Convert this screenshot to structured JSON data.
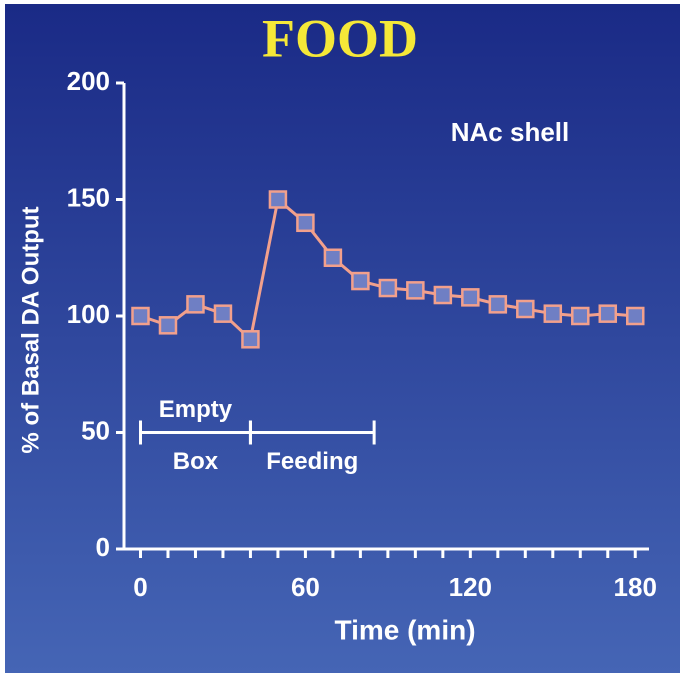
{
  "chart_data": {
    "type": "line",
    "title": "FOOD",
    "annotation": "NAc shell",
    "x_label": "Time (min)",
    "y_label": "% of Basal DA Output",
    "x": [
      0,
      10,
      20,
      30,
      40,
      50,
      60,
      70,
      80,
      90,
      100,
      110,
      120,
      130,
      140,
      150,
      160,
      170,
      180
    ],
    "series": [
      {
        "name": null,
        "color": "#f2a08c",
        "marker_fill": "#6f7fc4",
        "values": [
          100,
          96,
          105,
          101,
          90,
          150,
          140,
          125,
          115,
          112,
          111,
          109,
          108,
          105,
          103,
          101,
          100,
          101,
          100
        ]
      }
    ],
    "xlim": [
      -6,
      185
    ],
    "xticks": [
      0,
      60,
      120,
      180
    ],
    "xminor_ticks": [
      10,
      20,
      30,
      40,
      50,
      70,
      80,
      90,
      100,
      110,
      130,
      140,
      150,
      160,
      170
    ],
    "ylim": [
      0,
      200
    ],
    "yticks": [
      0,
      50,
      100,
      150,
      200
    ],
    "periods": [
      {
        "labels": [
          "Empty",
          "Box"
        ],
        "start": 0,
        "end": 40,
        "y": 50
      },
      {
        "labels": [
          "Feeding"
        ],
        "start": 40,
        "end": 85,
        "y": 50
      }
    ]
  }
}
